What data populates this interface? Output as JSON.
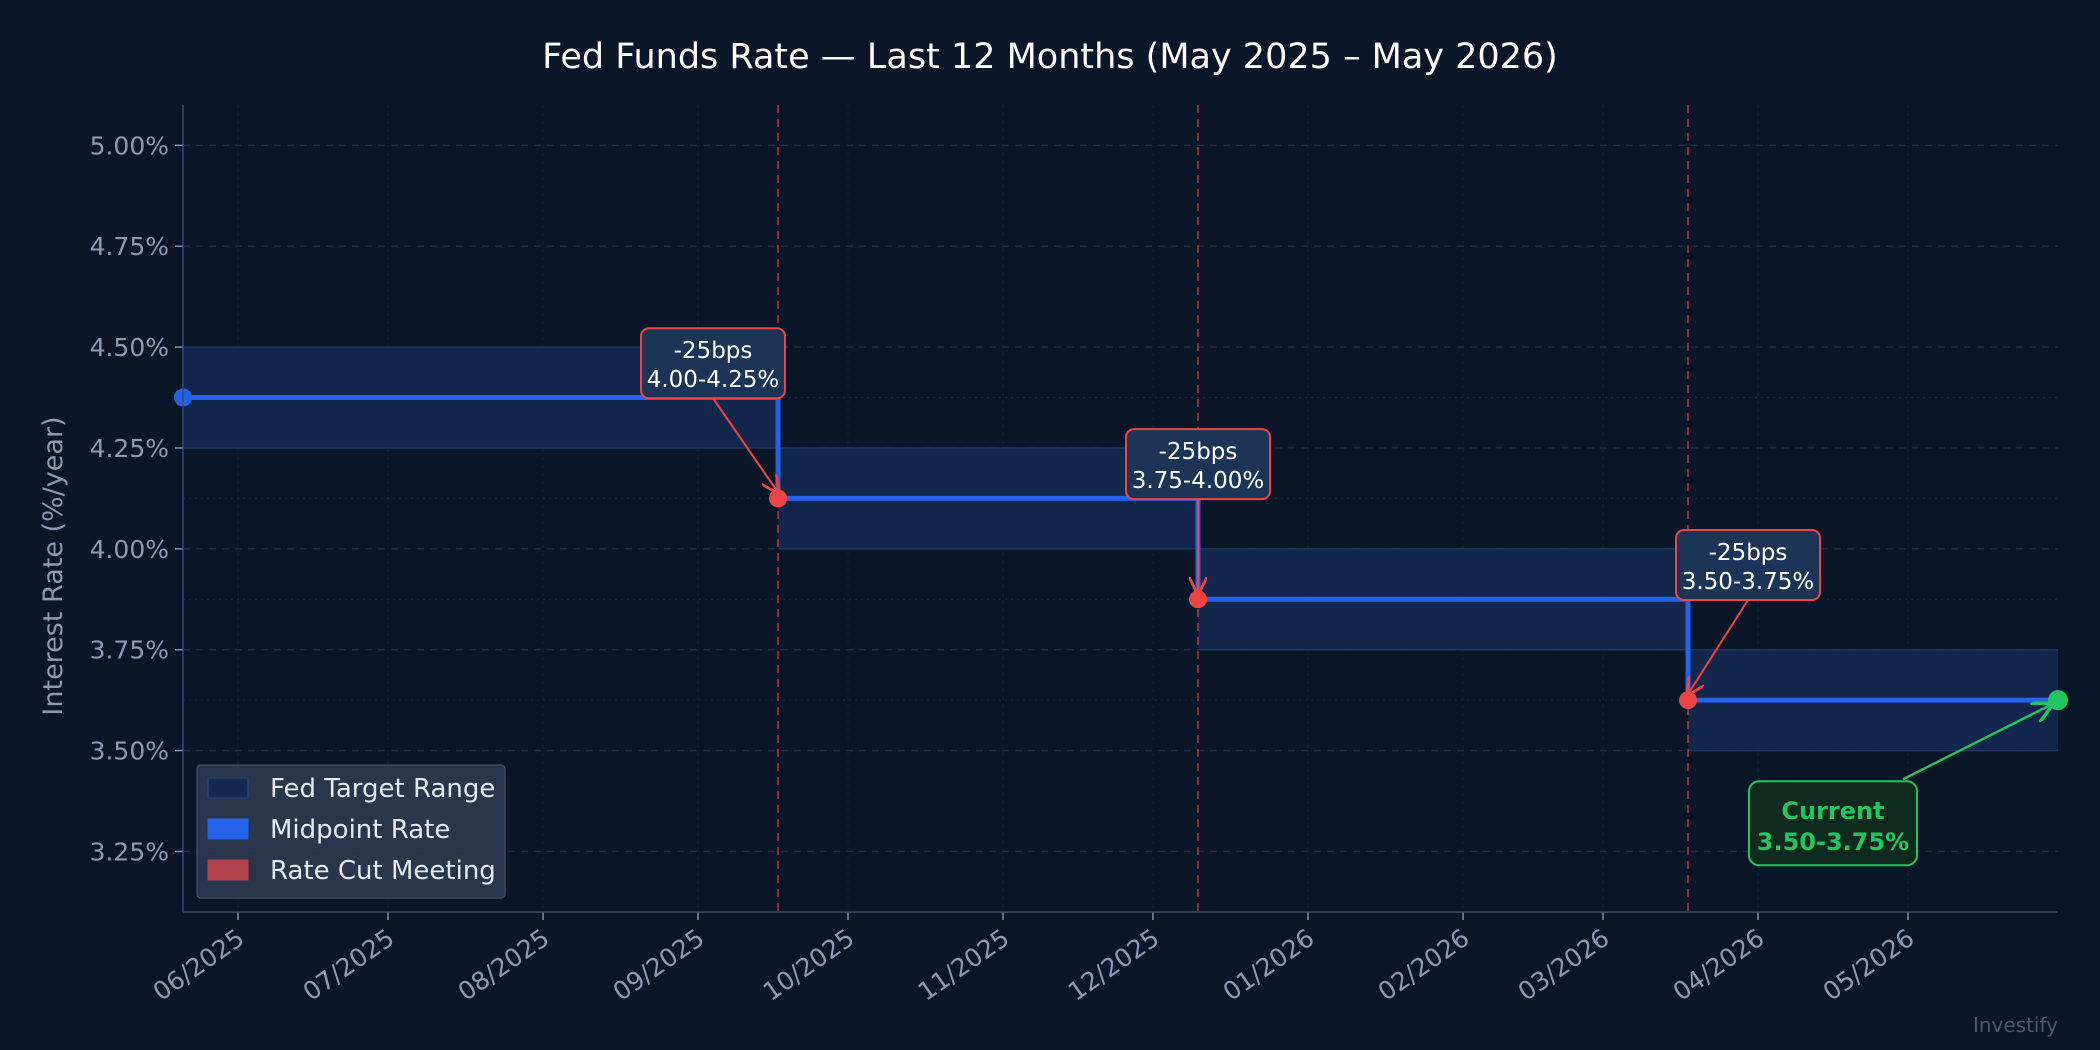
{
  "chart_data": {
    "type": "line",
    "title": "Fed Funds Rate — Last 12 Months (May 2025 – May 2026)",
    "xlabel": "",
    "ylabel": "Interest Rate (%/year)",
    "ylim": [
      3.1,
      5.1
    ],
    "xlim": [
      "2025-05-21",
      "2026-05-31"
    ],
    "y_ticks": [
      3.25,
      3.5,
      3.75,
      4.0,
      4.25,
      4.5,
      4.75,
      5.0
    ],
    "y_tick_labels": [
      "3.25%",
      "3.50%",
      "3.75%",
      "4.00%",
      "4.25%",
      "4.50%",
      "4.75%",
      "5.00%"
    ],
    "x_ticks": [
      "2025-06-01",
      "2025-07-01",
      "2025-08-01",
      "2025-09-01",
      "2025-10-01",
      "2025-11-01",
      "2025-12-01",
      "2026-01-01",
      "2026-02-01",
      "2026-03-01",
      "2026-04-01",
      "2026-05-01"
    ],
    "x_tick_labels": [
      "06/2025",
      "07/2025",
      "08/2025",
      "09/2025",
      "10/2025",
      "11/2025",
      "12/2025",
      "01/2026",
      "02/2026",
      "03/2026",
      "04/2026",
      "05/2026"
    ],
    "grid": true,
    "legend_position": "bottom-left",
    "series": [
      {
        "name": "Fed Target Range",
        "type": "band",
        "segments": [
          {
            "start": "2025-05-21",
            "end": "2025-09-17",
            "low": 4.25,
            "high": 4.5
          },
          {
            "start": "2025-09-17",
            "end": "2025-12-10",
            "low": 4.0,
            "high": 4.25
          },
          {
            "start": "2025-12-10",
            "end": "2026-03-18",
            "low": 3.75,
            "high": 4.0
          },
          {
            "start": "2026-03-18",
            "end": "2026-05-31",
            "low": 3.5,
            "high": 3.75
          }
        ]
      },
      {
        "name": "Midpoint Rate",
        "type": "step",
        "points": [
          {
            "x": "2025-05-21",
            "y": 4.375
          },
          {
            "x": "2025-09-17",
            "y": 4.125
          },
          {
            "x": "2025-12-10",
            "y": 3.875
          },
          {
            "x": "2026-03-18",
            "y": 3.625
          },
          {
            "x": "2026-05-31",
            "y": 3.625
          }
        ]
      },
      {
        "name": "Rate Cut Meeting",
        "type": "vline",
        "dates": [
          "2025-09-17",
          "2025-12-10",
          "2026-03-18"
        ]
      }
    ],
    "annotations": [
      {
        "date": "2025-09-17",
        "y": 4.125,
        "line1": "-25bps",
        "line2": "4.00-4.25%",
        "label_x": "2025-09-04",
        "label_y": 4.46
      },
      {
        "date": "2025-12-10",
        "y": 3.875,
        "line1": "-25bps",
        "line2": "3.75-4.00%",
        "label_x": "2025-12-10",
        "label_y": 4.21
      },
      {
        "date": "2026-03-18",
        "y": 3.625,
        "line1": "-25bps",
        "line2": "3.50-3.75%",
        "label_x": "2026-03-30",
        "label_y": 3.96
      }
    ],
    "current": {
      "date": "2026-05-31",
      "y": 3.625,
      "line1": "Current",
      "line2": "3.50-3.75%",
      "label_x": "2026-04-16",
      "label_y": 3.32
    },
    "colors": {
      "background": "#0b1628",
      "band_fill": "#13294f",
      "band_edge": "#1f3a6b",
      "midpoint": "#2563eb",
      "cut": "#ef4444",
      "cut_line": "#7f2d3a",
      "current": "#22c55e",
      "grid": "#1f2d45",
      "tick": "#8b9bb4"
    },
    "watermark": "Investify"
  }
}
